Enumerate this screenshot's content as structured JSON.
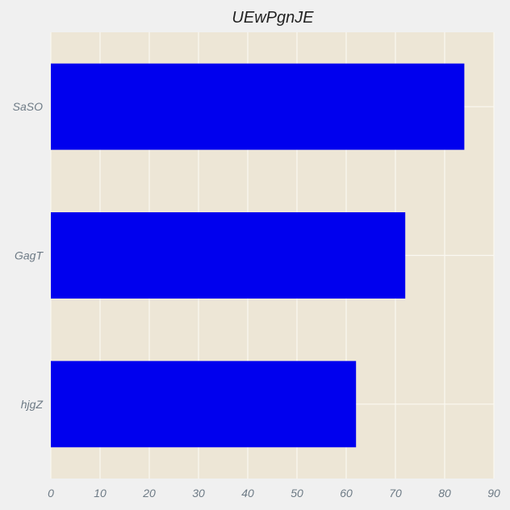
{
  "chart_data": {
    "type": "bar",
    "orientation": "horizontal",
    "title": "UEwPgnJE",
    "xlabel": "",
    "ylabel": "",
    "categories": [
      "SaSO",
      "GagT",
      "hjgZ"
    ],
    "values": [
      84,
      72,
      62
    ],
    "xlim": [
      0,
      90
    ],
    "xticks": [
      0,
      10,
      20,
      30,
      40,
      50,
      60,
      70,
      80,
      90
    ],
    "grid": true,
    "colors": {
      "bar": "#0000ee",
      "plot_background": "#ede6d6",
      "figure_background": "#f0f0f0",
      "grid": "#fbf8f1",
      "tick_text": "#6d7a85",
      "title_text": "#222222"
    }
  }
}
